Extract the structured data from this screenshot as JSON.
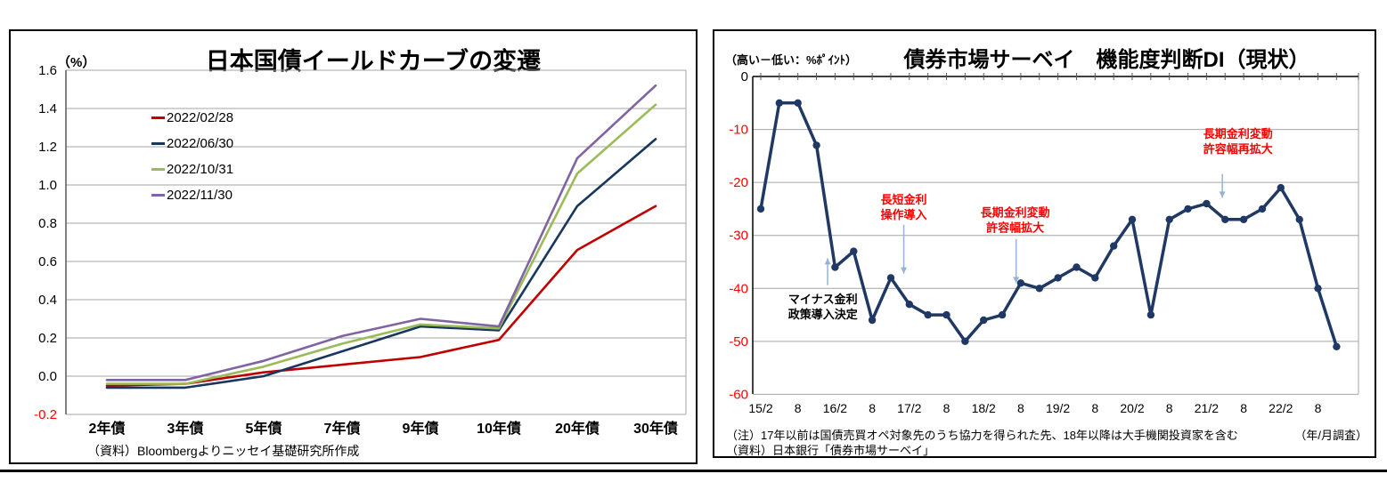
{
  "chart_data": [
    {
      "id": "jgb-yield-curve",
      "type": "line",
      "title": "日本国債イールドカーブの変遷",
      "unit_label": "（%）",
      "source": "（資料）Bloombergよりニッセイ基礎研究所作成",
      "categories": [
        "2年債",
        "3年債",
        "5年債",
        "7年債",
        "9年債",
        "10年債",
        "20年債",
        "30年債"
      ],
      "series": [
        {
          "name": "2022/02/28",
          "color": "#C00000",
          "values": [
            -0.05,
            -0.04,
            0.02,
            0.06,
            0.1,
            0.19,
            0.66,
            0.89
          ]
        },
        {
          "name": "2022/06/30",
          "color": "#17375E",
          "values": [
            -0.06,
            -0.06,
            0.0,
            0.13,
            0.26,
            0.24,
            0.89,
            1.24
          ]
        },
        {
          "name": "2022/10/31",
          "color": "#9BBB59",
          "values": [
            -0.04,
            -0.04,
            0.05,
            0.17,
            0.27,
            0.25,
            1.06,
            1.42
          ]
        },
        {
          "name": "2022/11/30",
          "color": "#8064A2",
          "values": [
            -0.02,
            -0.02,
            0.08,
            0.21,
            0.3,
            0.26,
            1.14,
            1.52
          ]
        }
      ],
      "ylim": [
        -0.2,
        1.6
      ],
      "ytick_labels": [
        "1.6",
        "1.4",
        "1.2",
        "1.0",
        "0.8",
        "0.6",
        "0.4",
        "0.2",
        "0.0",
        "-0.2"
      ],
      "grid": true,
      "legend_position": "inside-upper-left",
      "negative_tick_color": "#FF0000"
    },
    {
      "id": "bond-market-survey-di",
      "type": "line",
      "title": "債券市場サーベイ　機能度判断DI（現状）",
      "unit_label": "（高い－低い：%ﾎﾟｲﾝﾄ）",
      "axis_caption": "（年/月調査）",
      "notes": [
        "（注）17年以前は国債売買オペ対象先のうち協力を得られた先、18年以降は大手機関投資家を含む",
        "（資料）日本銀行「債券市場サーベイ」"
      ],
      "x": [
        "15/2",
        "15/5",
        "15/8",
        "15/11",
        "16/2",
        "16/5",
        "16/8",
        "16/11",
        "17/2",
        "17/5",
        "17/8",
        "17/11",
        "18/2",
        "18/5",
        "18/8",
        "18/11",
        "19/2",
        "19/5",
        "19/8",
        "19/11",
        "20/2",
        "20/5",
        "20/8",
        "20/11",
        "21/2",
        "21/5",
        "21/8",
        "21/11",
        "22/2",
        "22/5",
        "22/8",
        "22/11"
      ],
      "xtick_labels": [
        "15/2",
        "8",
        "16/2",
        "8",
        "17/2",
        "8",
        "18/2",
        "8",
        "19/2",
        "8",
        "20/2",
        "8",
        "21/2",
        "8",
        "22/2",
        "8"
      ],
      "series": [
        {
          "name": "機能度判断DI（現状）",
          "color": "#1F3864",
          "marker": "circle",
          "values": [
            -25,
            -5,
            -5,
            -13,
            -36,
            -33,
            -46,
            -38,
            -43,
            -45,
            -45,
            -50,
            -46,
            -45,
            -39,
            -40,
            -38,
            -36,
            -38,
            -32,
            -27,
            -45,
            -27,
            -25,
            -24,
            -27,
            -27,
            -25,
            -21,
            -27,
            -40,
            -51
          ]
        }
      ],
      "ylim": [
        -60,
        0
      ],
      "ytick_labels": [
        "0",
        "-10",
        "-20",
        "-30",
        "-40",
        "-50",
        "-60"
      ],
      "grid": true,
      "negative_tick_color": "#FF0000",
      "arrow_color": "#95B3D7",
      "annotations": [
        {
          "id": "annotation-negative-rate-policy",
          "lines": [
            "マイナス金利",
            "政策導入決定"
          ],
          "color": "#000000",
          "text_index": 3.35,
          "text_top_value": -40.8,
          "arrow_index": 3.6,
          "arrow_from_value": -39.4,
          "arrow_to_value": -34.3,
          "arrow_direction": "up"
        },
        {
          "id": "annotation-ycc-introduction",
          "lines": [
            "長短金利",
            "操作導入"
          ],
          "color": "#FF0000",
          "text_index": 7.7,
          "text_top_value": -22.0,
          "arrow_index": 7.7,
          "arrow_from_value": -28.0,
          "arrow_to_value": -37.2,
          "arrow_direction": "down"
        },
        {
          "id": "annotation-band-widening",
          "lines": [
            "長期金利変動",
            "許容幅拡大"
          ],
          "color": "#FF0000",
          "text_index": 13.7,
          "text_top_value": -24.4,
          "arrow_index": 13.75,
          "arrow_from_value": -30.7,
          "arrow_to_value": -39.0,
          "arrow_direction": "down"
        },
        {
          "id": "annotation-band-rewidening",
          "lines": [
            "長期金利変動",
            "許容幅再拡大"
          ],
          "color": "#FF0000",
          "text_index": 25.7,
          "text_top_value": -9.6,
          "arrow_index": 24.85,
          "arrow_from_value": -18.4,
          "arrow_to_value": -22.9,
          "arrow_direction": "down"
        }
      ]
    }
  ]
}
